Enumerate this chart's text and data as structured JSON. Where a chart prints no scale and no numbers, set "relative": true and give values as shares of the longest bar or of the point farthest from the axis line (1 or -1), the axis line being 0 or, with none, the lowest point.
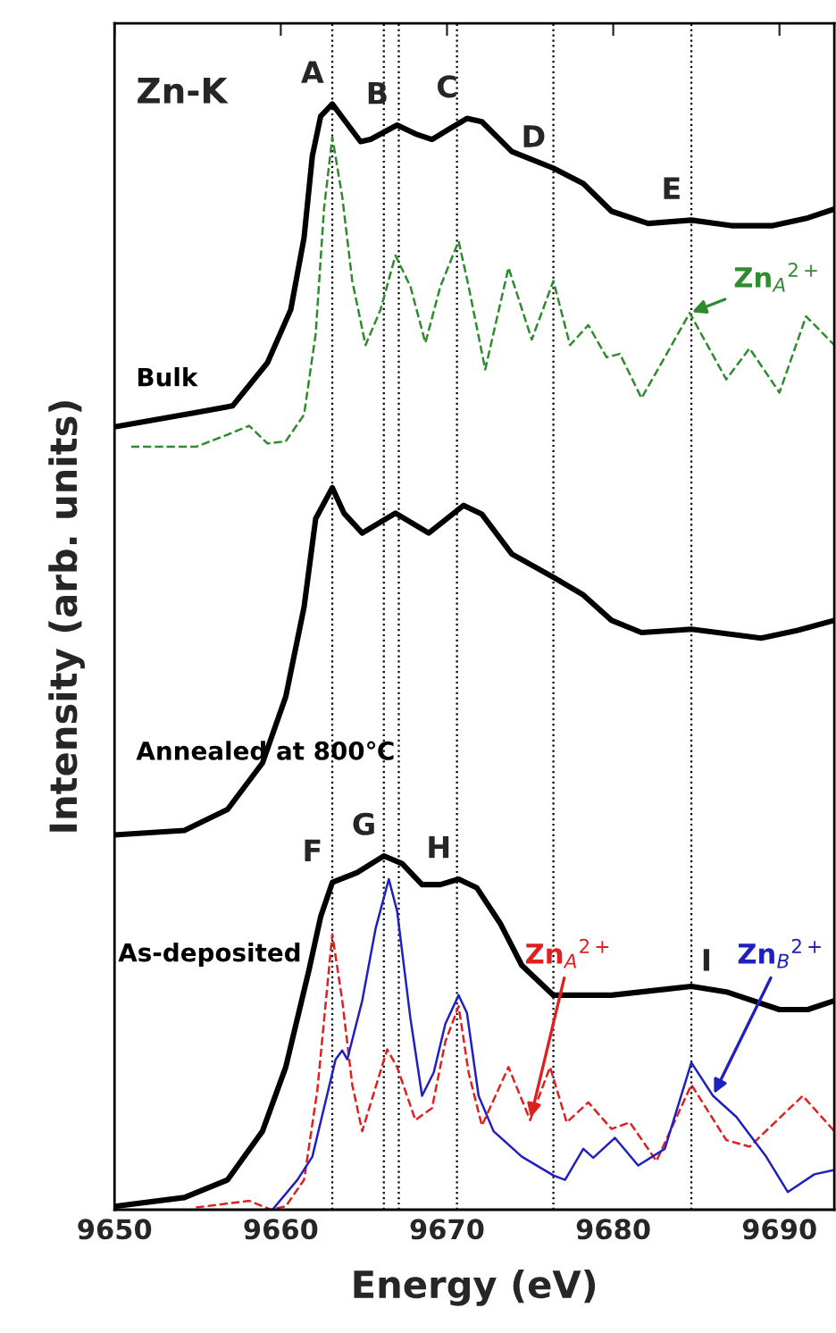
{
  "chart_data": {
    "type": "line",
    "relative": true,
    "xlabel": "Energy (eV)",
    "ylabel": "Intensity (arb. units)",
    "xlim": [
      9650,
      9693.3
    ],
    "xticks": [
      9650,
      9660,
      9670,
      9680,
      9690
    ],
    "grid": false,
    "legend": false,
    "marker": "none",
    "series": [
      {
        "name": "Bulk",
        "color": "#000000",
        "line_style": "solid",
        "x": [
          9650.0,
          9654.9,
          9657.1,
          9659.2,
          9660.6,
          9661.4,
          9661.9,
          9662.4,
          9663.1,
          9663.8,
          9664.8,
          9665.4,
          9667.0,
          9668.1,
          9669.1,
          9670.2,
          9671.2,
          9672.1,
          9673.9,
          9676.4,
          9678.2,
          9679.9,
          9682.1,
          9684.7,
          9687.1,
          9689.6,
          9691.7,
          9693.3
        ],
        "values": [
          0.708,
          0.721,
          0.727,
          0.766,
          0.814,
          0.879,
          0.953,
          0.989,
          1.0,
          0.986,
          0.966,
          0.968,
          0.981,
          0.973,
          0.968,
          0.978,
          0.987,
          0.984,
          0.957,
          0.942,
          0.928,
          0.903,
          0.892,
          0.895,
          0.89,
          0.89,
          0.897,
          0.905
        ]
      },
      {
        "name": "Zn$_{A}$$^{2+}$",
        "color": "#2e8b2e",
        "line_style": "dashed",
        "x": [
          9651.0,
          9654.9,
          9656.8,
          9658.1,
          9659.2,
          9660.3,
          9661.4,
          9662.1,
          9662.6,
          9663.1,
          9663.7,
          9664.3,
          9665.1,
          9666.0,
          9666.9,
          9667.8,
          9668.7,
          9669.6,
          9670.7,
          9671.3,
          9672.3,
          9673.7,
          9675.1,
          9676.4,
          9677.4,
          9678.5,
          9679.6,
          9680.4,
          9681.7,
          9683.1,
          9684.6,
          9686.8,
          9688.2,
          9690.0,
          9691.6,
          9693.3
        ],
        "values": [
          0.69,
          0.69,
          0.701,
          0.709,
          0.693,
          0.695,
          0.719,
          0.792,
          0.905,
          0.97,
          0.916,
          0.84,
          0.782,
          0.814,
          0.863,
          0.835,
          0.784,
          0.835,
          0.876,
          0.835,
          0.76,
          0.852,
          0.787,
          0.84,
          0.782,
          0.8,
          0.771,
          0.774,
          0.734,
          0.771,
          0.811,
          0.751,
          0.779,
          0.739,
          0.808,
          0.782
        ]
      },
      {
        "name": "Annealed at 800℃",
        "color": "#000000",
        "line_style": "solid",
        "x": [
          9650.0,
          9654.2,
          9656.8,
          9658.9,
          9660.3,
          9661.4,
          9662.1,
          9663.1,
          9663.8,
          9664.9,
          9666.9,
          9668.9,
          9671.0,
          9672.1,
          9673.9,
          9676.4,
          9678.2,
          9679.9,
          9681.7,
          9684.7,
          9688.9,
          9691.1,
          9693.3
        ],
        "values": [
          0.339,
          0.343,
          0.362,
          0.404,
          0.464,
          0.545,
          0.625,
          0.653,
          0.63,
          0.612,
          0.63,
          0.612,
          0.637,
          0.629,
          0.593,
          0.572,
          0.556,
          0.533,
          0.522,
          0.525,
          0.517,
          0.524,
          0.533
        ]
      },
      {
        "name": "As-deposited",
        "color": "#000000",
        "line_style": "solid",
        "x": [
          9650.0,
          9654.2,
          9656.8,
          9658.9,
          9660.3,
          9661.7,
          9662.4,
          9663.1,
          9664.6,
          9666.2,
          9667.3,
          9668.5,
          9669.6,
          9670.7,
          9671.8,
          9673.2,
          9674.5,
          9676.4,
          9679.9,
          9684.7,
          9686.8,
          9690.0,
          9691.7,
          9693.3
        ],
        "values": [
          0.003,
          0.011,
          0.027,
          0.071,
          0.129,
          0.217,
          0.265,
          0.296,
          0.305,
          0.32,
          0.313,
          0.294,
          0.294,
          0.299,
          0.291,
          0.259,
          0.221,
          0.194,
          0.194,
          0.202,
          0.197,
          0.181,
          0.181,
          0.189
        ]
      },
      {
        "name": "Zn$_{A}$$^{2+}$",
        "color": "#e02020",
        "line_style": "dashed",
        "x": [
          9654.9,
          9658.1,
          9659.4,
          9660.3,
          9661.4,
          9662.2,
          9663.1,
          9663.7,
          9664.3,
          9664.9,
          9666.4,
          9667.0,
          9668.1,
          9669.1,
          9669.9,
          9670.7,
          9671.3,
          9672.1,
          9673.7,
          9675.0,
          9676.2,
          9677.2,
          9678.5,
          9679.9,
          9681.0,
          9682.6,
          9684.7,
          9686.8,
          9688.2,
          9691.4,
          9693.3
        ],
        "values": [
          0.002,
          0.008,
          0.0,
          0.003,
          0.027,
          0.108,
          0.249,
          0.189,
          0.113,
          0.071,
          0.145,
          0.129,
          0.081,
          0.092,
          0.152,
          0.184,
          0.124,
          0.076,
          0.129,
          0.081,
          0.129,
          0.079,
          0.097,
          0.073,
          0.079,
          0.044,
          0.113,
          0.063,
          0.057,
          0.103,
          0.071
        ]
      },
      {
        "name": "Zn$_{B}$$^{2+}$",
        "color": "#2020c0",
        "line_style": "solid",
        "x": [
          9659.5,
          9661.0,
          9661.9,
          9663.3,
          9663.7,
          9664.0,
          9664.9,
          9665.7,
          9666.5,
          9667.0,
          9667.8,
          9668.5,
          9669.2,
          9669.9,
          9670.7,
          9671.2,
          9671.9,
          9672.8,
          9674.5,
          9676.4,
          9677.1,
          9678.2,
          9678.8,
          9680.1,
          9681.5,
          9683.1,
          9684.7,
          9686.0,
          9687.4,
          9689.2,
          9690.5,
          9692.1,
          9693.3
        ],
        "values": [
          0.0,
          0.027,
          0.048,
          0.136,
          0.144,
          0.136,
          0.189,
          0.254,
          0.299,
          0.27,
          0.173,
          0.103,
          0.124,
          0.168,
          0.194,
          0.178,
          0.103,
          0.071,
          0.048,
          0.031,
          0.027,
          0.055,
          0.047,
          0.065,
          0.04,
          0.055,
          0.133,
          0.103,
          0.084,
          0.048,
          0.016,
          0.032,
          0.036
        ]
      }
    ],
    "ref_lines": [
      {
        "axis": "x",
        "value": 9663.1,
        "color": "#000000",
        "line_style": "dotted"
      },
      {
        "axis": "x",
        "value": 9666.2,
        "color": "#000000",
        "line_style": "dotted"
      },
      {
        "axis": "x",
        "value": 9667.1,
        "color": "#000000",
        "line_style": "dotted"
      },
      {
        "axis": "x",
        "value": 9670.6,
        "color": "#000000",
        "line_style": "dotted"
      },
      {
        "axis": "x",
        "value": 9676.4,
        "color": "#000000",
        "line_style": "dotted"
      },
      {
        "axis": "x",
        "value": 9684.7,
        "color": "#000000",
        "line_style": "dotted"
      }
    ],
    "annotations": [
      "Zn-K",
      {
        "text": "A",
        "x": 9663.1,
        "y": 1.0
      },
      {
        "text": "B",
        "x": 9667.0,
        "y": 0.981
      },
      {
        "text": "C",
        "x": 9671.2,
        "y": 0.987
      },
      {
        "text": "D",
        "x": 9676.4,
        "y": 0.942
      },
      {
        "text": "E",
        "x": 9684.7,
        "y": 0.895
      },
      {
        "text": "F",
        "x": 9663.1,
        "y": 0.296
      },
      {
        "text": "G",
        "x": 9666.2,
        "y": 0.32
      },
      {
        "text": "H",
        "x": 9670.7,
        "y": 0.299
      },
      {
        "text": "I",
        "x": 9686.8,
        "y": 0.197
      }
    ]
  }
}
